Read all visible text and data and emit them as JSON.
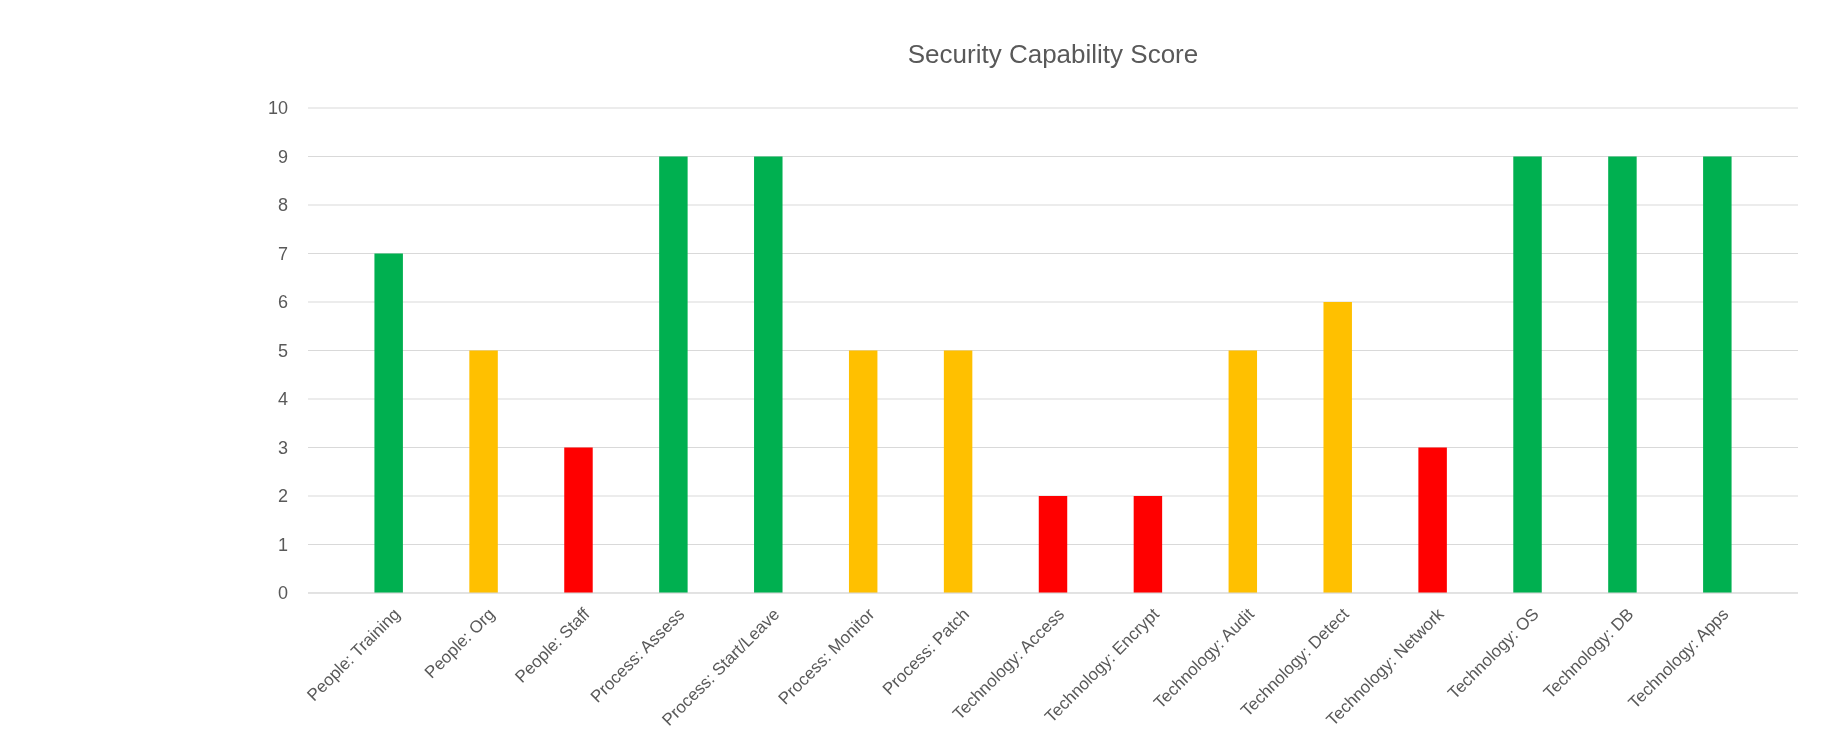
{
  "chart_data": {
    "type": "bar",
    "title": "Security Capability Score",
    "categories": [
      "People: Training",
      "People: Org",
      "People: Staff",
      "Process: Assess",
      "Process: Start/Leave",
      "Process: Monitor",
      "Process: Patch",
      "Technology: Access",
      "Technology: Encrypt",
      "Technology: Audit",
      "Technology: Detect",
      "Technology: Network",
      "Technology: OS",
      "Technology: DB",
      "Technology: Apps"
    ],
    "values": [
      7,
      5,
      3,
      9,
      9,
      5,
      5,
      2,
      2,
      5,
      6,
      3,
      9,
      9,
      9
    ],
    "colors": [
      "#00b050",
      "#ffc000",
      "#ff0000",
      "#00b050",
      "#00b050",
      "#ffc000",
      "#ffc000",
      "#ff0000",
      "#ff0000",
      "#ffc000",
      "#ffc000",
      "#ff0000",
      "#00b050",
      "#00b050",
      "#00b050"
    ],
    "ylim": [
      0,
      10
    ],
    "yticks": [
      0,
      1,
      2,
      3,
      4,
      5,
      6,
      7,
      8,
      9,
      10
    ],
    "grid": "y"
  }
}
